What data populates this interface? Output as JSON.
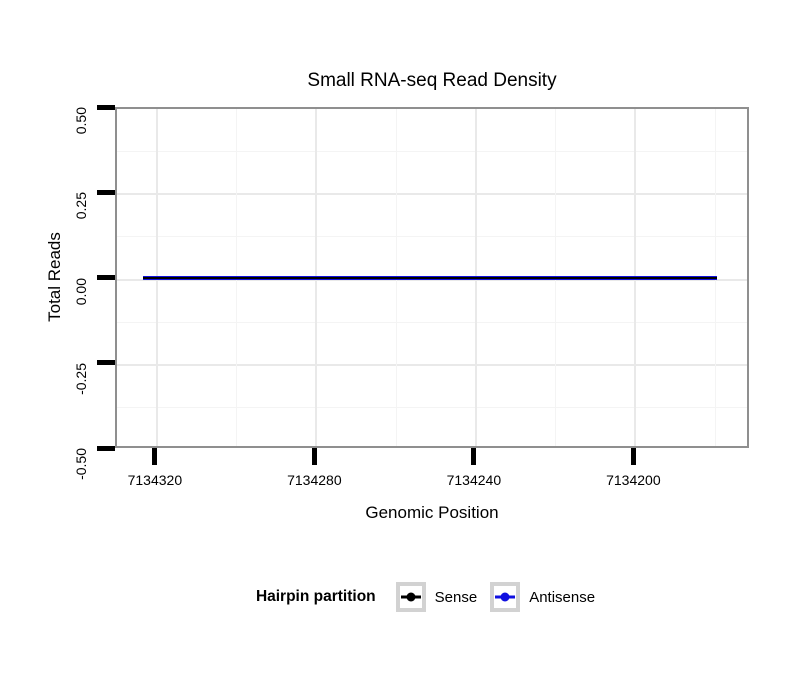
{
  "chart_data": {
    "type": "line",
    "title": "Small RNA-seq Read Density",
    "xlabel": "Genomic Position",
    "ylabel": "Total Reads",
    "x_tick_labels": [
      "7134320",
      "7134280",
      "7134240",
      "7134200"
    ],
    "x_tick_values": [
      7134320,
      7134280,
      7134240,
      7134200
    ],
    "x_axis_reversed": true,
    "xlim": [
      7134330,
      7134171
    ],
    "y_tick_labels": [
      "0.50",
      "0.25",
      "0.00",
      "-0.25",
      "-0.50"
    ],
    "y_tick_values": [
      0.5,
      0.25,
      0.0,
      -0.25,
      -0.5
    ],
    "ylim": [
      -0.5,
      0.5
    ],
    "grid": "major and minor, light gray on white panel",
    "panel_border_color": "#8f8f8f",
    "series": [
      {
        "name": "Sense",
        "color": "#000000",
        "y_constant": 0.0,
        "x_span": [
          7134323,
          7134179
        ]
      },
      {
        "name": "Antisense",
        "color": "#1010E0",
        "y_constant": 0.0,
        "x_span": [
          7134323,
          7134179
        ]
      }
    ],
    "legend": {
      "title": "Hairpin partition",
      "position": "bottom",
      "entries": [
        {
          "label": "Sense",
          "color": "#000000"
        },
        {
          "label": "Antisense",
          "color": "#1010E0"
        }
      ]
    }
  }
}
